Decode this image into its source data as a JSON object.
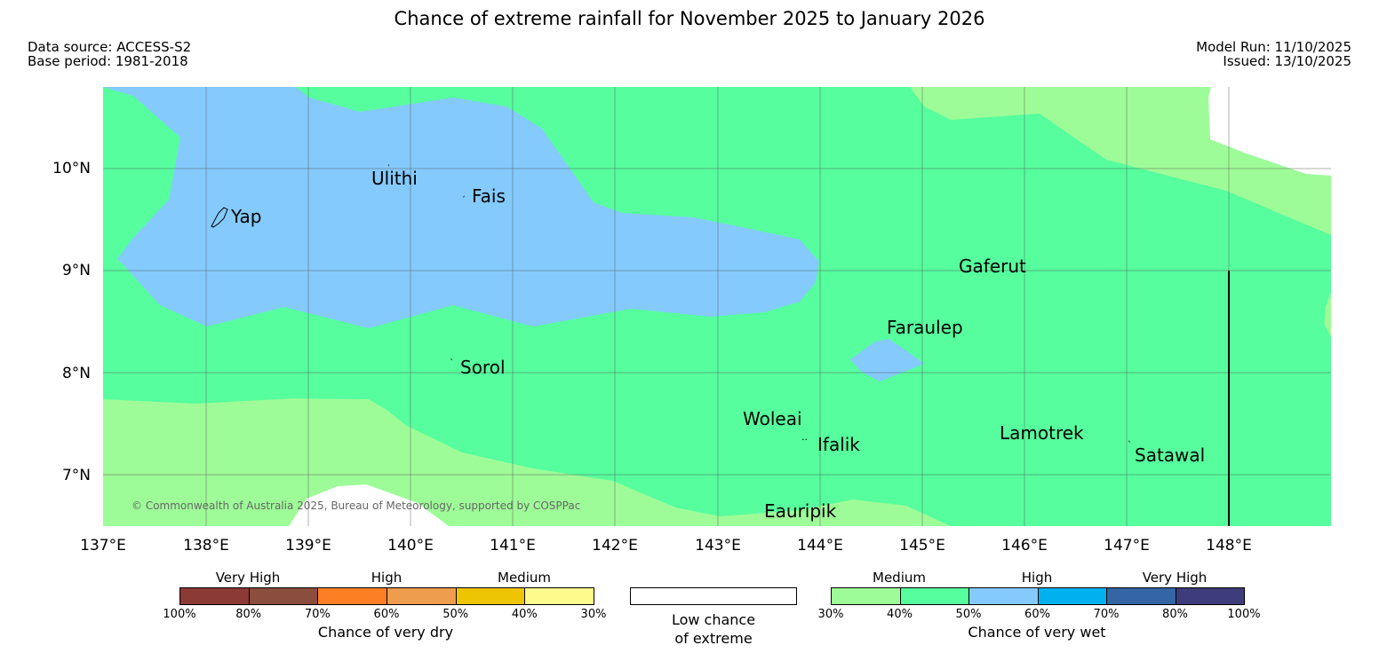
{
  "title": "Chance of extreme rainfall for November 2025 to January 2026",
  "meta": {
    "data_source": "Data source: ACCESS-S2",
    "base_period": "Base period: 1981-2018",
    "model_run": "Model Run: 11/10/2025",
    "issued": "Issued: 13/10/2025"
  },
  "map": {
    "lat_labels": [
      "10°N",
      "9°N",
      "8°N",
      "7°N"
    ],
    "lon_labels": [
      "137°E",
      "138°E",
      "139°E",
      "140°E",
      "141°E",
      "142°E",
      "143°E",
      "144°E",
      "145°E",
      "146°E",
      "147°E",
      "148°E"
    ],
    "places": {
      "ulithi": "Ulithi",
      "fais": "Fais",
      "yap": "Yap",
      "gaferut": "Gaferut",
      "faraulep": "Faraulep",
      "sorol": "Sorol",
      "woleai": "Woleai",
      "ifalik": "Ifalik",
      "lamotrek": "Lamotrek",
      "satawal": "Satawal",
      "eauripik": "Eauripik"
    },
    "copyright": "© Commonwealth of Australia 2025, Bureau of Meteorology, supported by COSPPac",
    "colors": {
      "medium_wet": "#9efc98",
      "high_wet_50": "#56fe9d",
      "high_wet_60": "#84cafd",
      "low": "#ffffff"
    }
  },
  "legend": {
    "dry": {
      "headers": [
        "Very High",
        "High",
        "Medium"
      ],
      "ticks": [
        "100%",
        "80%",
        "70%",
        "60%",
        "50%",
        "40%",
        "30%"
      ],
      "colors": [
        "#8b3a36",
        "#8b4d3d",
        "#fd7f23",
        "#ee9c4d",
        "#eec502",
        "#fefa8b"
      ],
      "caption": "Chance of very dry"
    },
    "low": {
      "caption_line1": "Low chance",
      "caption_line2": "of extreme"
    },
    "wet": {
      "headers": [
        "Medium",
        "High",
        "Very High"
      ],
      "ticks": [
        "30%",
        "40%",
        "50%",
        "60%",
        "70%",
        "80%",
        "100%"
      ],
      "colors": [
        "#9efc98",
        "#56fe9d",
        "#84cafd",
        "#00b0ef",
        "#3465a4",
        "#3e3c7a"
      ],
      "caption": "Chance of very wet"
    }
  }
}
